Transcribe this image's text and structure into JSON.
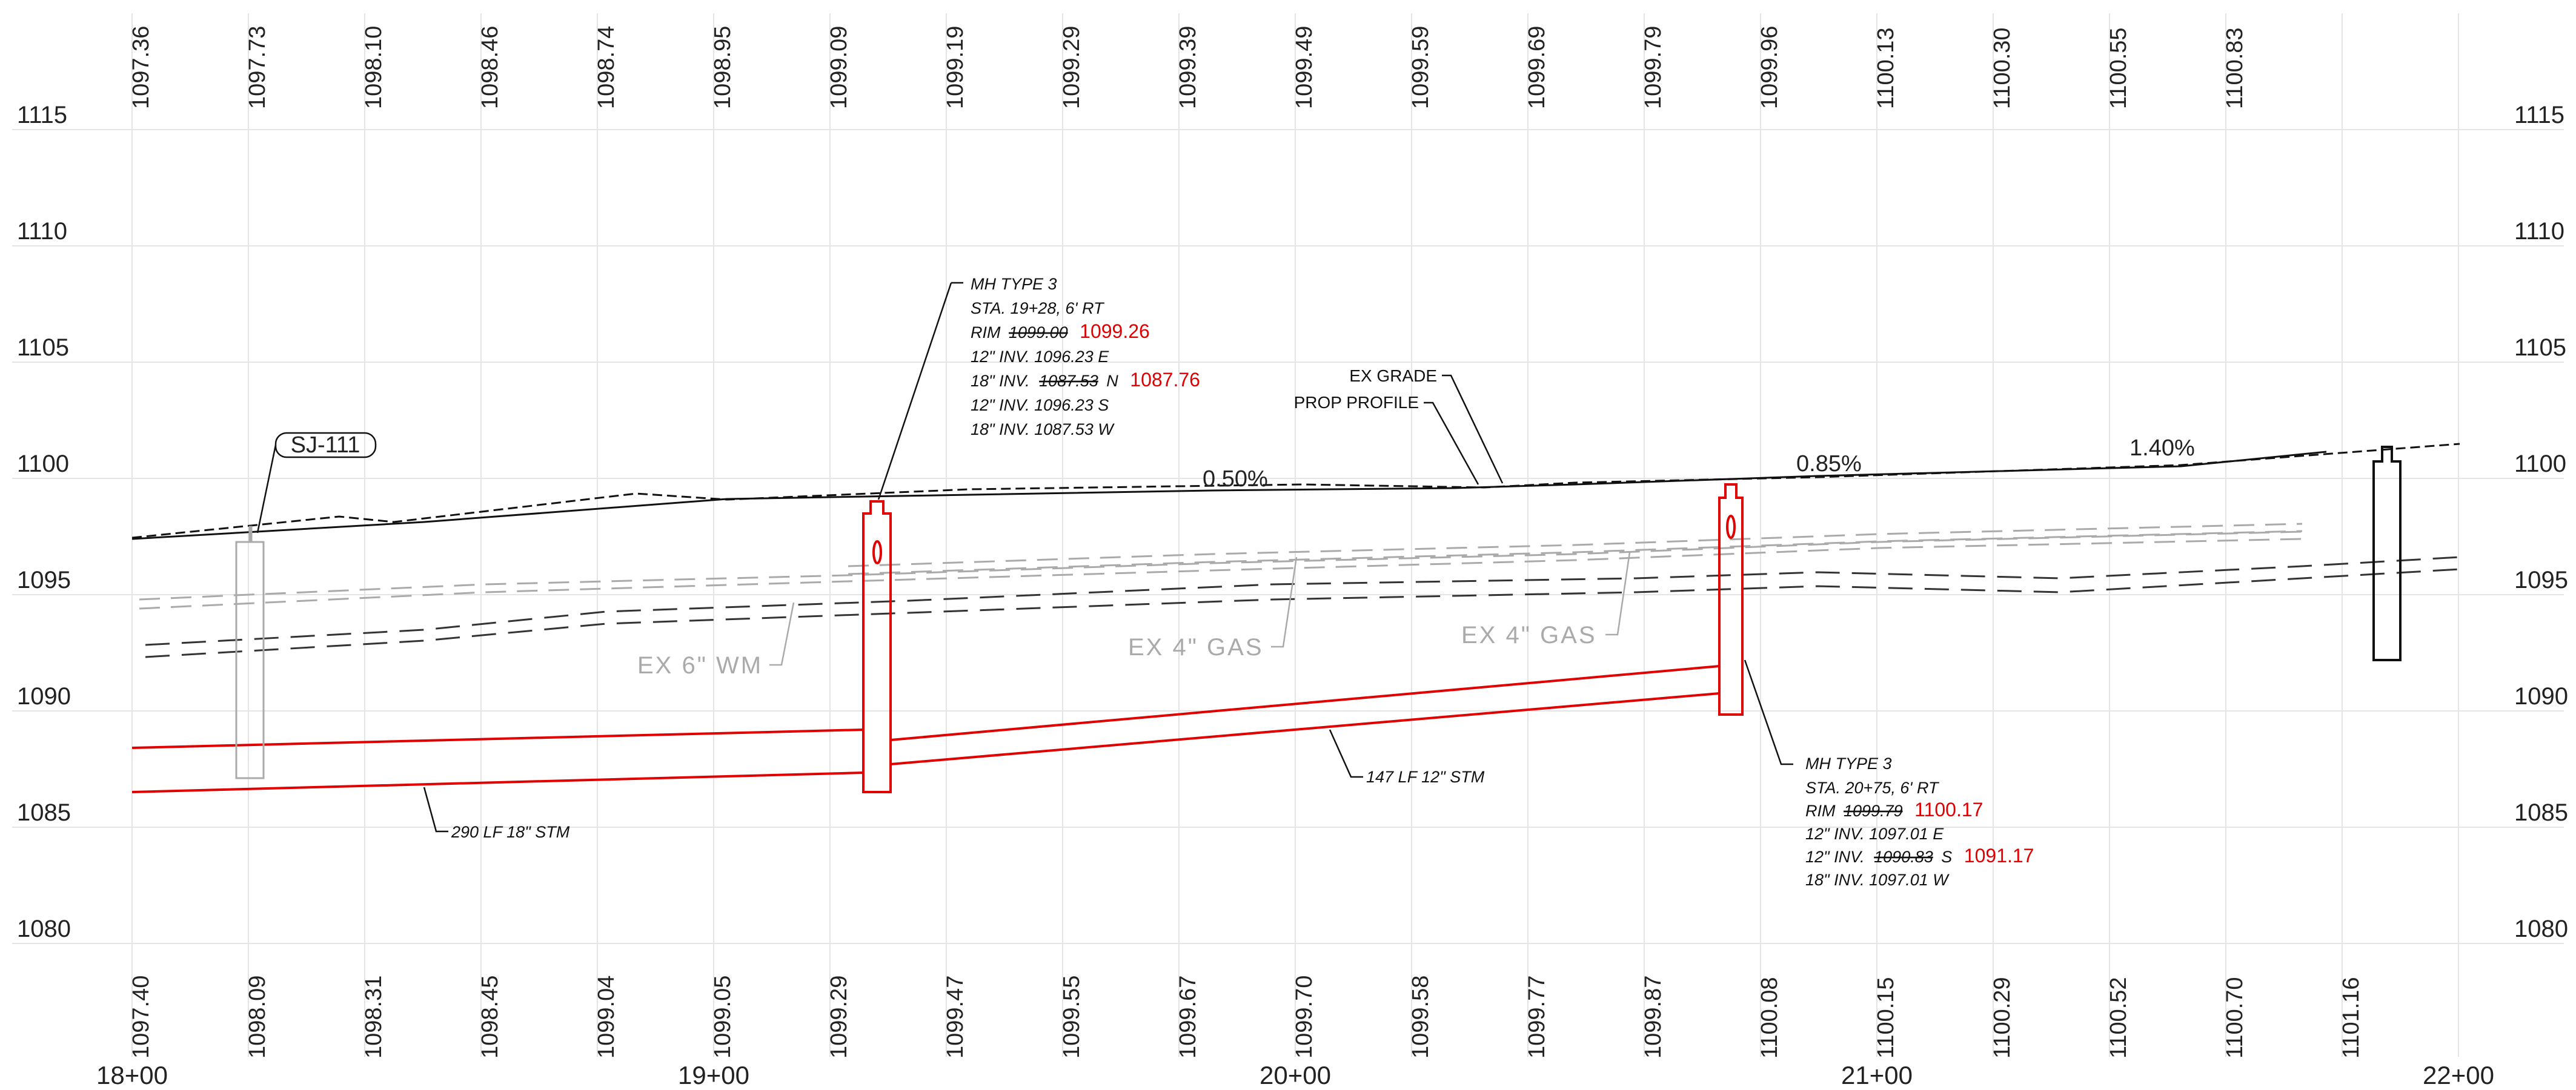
{
  "profile": {
    "elevations": [
      "1115",
      "1110",
      "1105",
      "1100",
      "1095",
      "1090",
      "1085",
      "1080"
    ],
    "stations": [
      "18+00",
      "19+00",
      "20+00",
      "21+00",
      "22+00"
    ],
    "top_elevations": [
      "1097.36",
      "1097.73",
      "1098.10",
      "1098.46",
      "1098.74",
      "1098.95",
      "1099.09",
      "1099.19",
      "1099.29",
      "1099.39",
      "1099.49",
      "1099.59",
      "1099.69",
      "1099.79",
      "1099.96",
      "1100.13",
      "1100.30",
      "1100.55",
      "1100.83"
    ],
    "bottom_elevations": [
      "1097.40",
      "1098.09",
      "1098.31",
      "1098.45",
      "1099.04",
      "1099.05",
      "1099.29",
      "1099.47",
      "1099.55",
      "1099.67",
      "1099.70",
      "1099.58",
      "1099.77",
      "1099.87",
      "1100.08",
      "1100.15",
      "1100.29",
      "1100.52",
      "1100.70",
      "1101.16"
    ]
  },
  "labels": {
    "sj": "SJ-111",
    "ex_grade": "EX GRADE",
    "prop_profile": "PROP PROFILE",
    "ex_wm": "EX 6\" WM",
    "ex_gas_1": "EX 4\" GAS",
    "ex_gas_2": "EX 4\" GAS",
    "pipe_18": "290 LF 18\" STM",
    "pipe_12": "147 LF 12\" STM",
    "grade_1": "0.50%",
    "grade_2": "0.85%",
    "grade_3": "1.40%"
  },
  "mh1": {
    "title": "MH TYPE 3",
    "sta": "STA.  19+28, 6' RT",
    "rim_prefix": "RIM",
    "rim_old": "1099.00",
    "rim_new": "1099.26",
    "l2": "12\" INV. 1096.23 E",
    "l3_prefix": "18\" INV.",
    "l3_old": "1087.53",
    "l3_dir": "N",
    "l3_new": "1087.76",
    "l4": "12\" INV. 1096.23 S",
    "l5": "18\" INV. 1087.53 W"
  },
  "mh2": {
    "title": "MH TYPE 3",
    "sta": "STA.  20+75, 6' RT",
    "rim_prefix": "RIM",
    "rim_old": "1099.79",
    "rim_new": "1100.17",
    "l2": "12\" INV. 1097.01 E",
    "l3_prefix": "12\" INV.",
    "l3_old": "1090.83",
    "l3_dir": "S",
    "l3_new": "1091.17",
    "l4": "18\" INV. 1097.01 W"
  },
  "colors": {
    "proposed": "#e00000",
    "existing": "#111111",
    "utility": "#aaaaaa",
    "grid": "#e4e4e4"
  }
}
